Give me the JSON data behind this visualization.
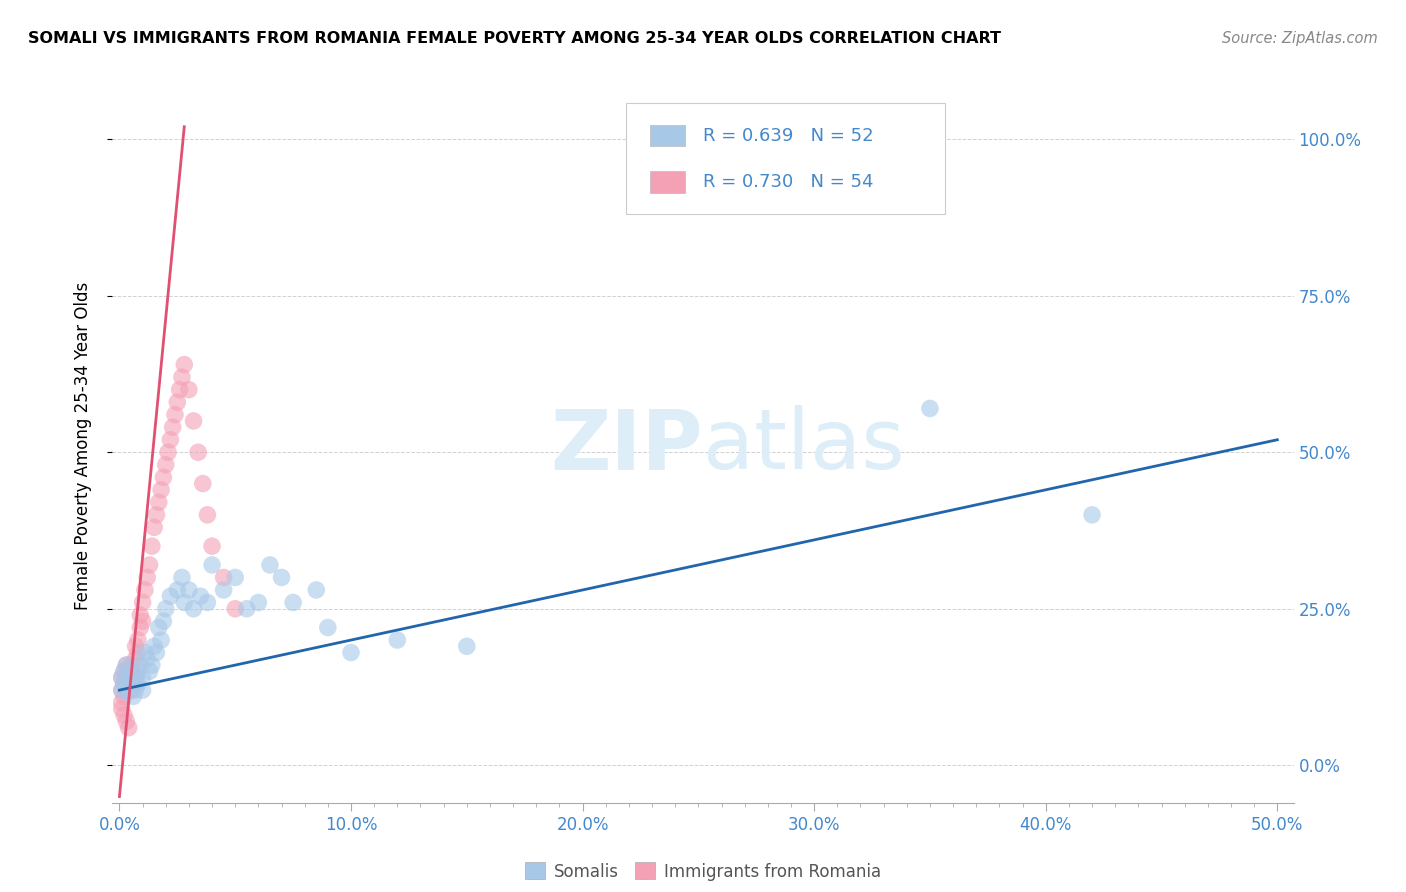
{
  "title": "SOMALI VS IMMIGRANTS FROM ROMANIA FEMALE POVERTY AMONG 25-34 YEAR OLDS CORRELATION CHART",
  "source": "Source: ZipAtlas.com",
  "ylabel_label": "Female Poverty Among 25-34 Year Olds",
  "legend_label1": "Somalis",
  "legend_label2": "Immigrants from Romania",
  "R1": 0.639,
  "N1": 52,
  "R2": 0.73,
  "N2": 54,
  "color_blue": "#a8c8e8",
  "color_pink": "#f4a0b5",
  "line_blue": "#2166ac",
  "line_pink": "#e05070",
  "watermark_color": "#ddeef8",
  "blue_line_x0": 0.0,
  "blue_line_y0": 0.12,
  "blue_line_x1": 0.5,
  "blue_line_y1": 0.52,
  "pink_line_x0": 0.0,
  "pink_line_y0": -0.05,
  "pink_line_x1": 0.028,
  "pink_line_y1": 1.02,
  "xlim_min": -0.003,
  "xlim_max": 0.507,
  "ylim_min": -0.06,
  "ylim_max": 1.08,
  "somali_x": [
    0.001,
    0.001,
    0.002,
    0.002,
    0.003,
    0.003,
    0.004,
    0.004,
    0.005,
    0.005,
    0.006,
    0.006,
    0.007,
    0.007,
    0.008,
    0.008,
    0.009,
    0.01,
    0.01,
    0.011,
    0.012,
    0.013,
    0.014,
    0.015,
    0.016,
    0.017,
    0.018,
    0.019,
    0.02,
    0.022,
    0.025,
    0.027,
    0.028,
    0.03,
    0.032,
    0.035,
    0.038,
    0.04,
    0.045,
    0.05,
    0.055,
    0.06,
    0.065,
    0.07,
    0.075,
    0.085,
    0.09,
    0.1,
    0.12,
    0.15,
    0.35,
    0.42
  ],
  "somali_y": [
    0.12,
    0.14,
    0.13,
    0.15,
    0.12,
    0.16,
    0.14,
    0.13,
    0.15,
    0.12,
    0.13,
    0.11,
    0.14,
    0.12,
    0.15,
    0.13,
    0.16,
    0.14,
    0.12,
    0.18,
    0.17,
    0.15,
    0.16,
    0.19,
    0.18,
    0.22,
    0.2,
    0.23,
    0.25,
    0.27,
    0.28,
    0.3,
    0.26,
    0.28,
    0.25,
    0.27,
    0.26,
    0.32,
    0.28,
    0.3,
    0.25,
    0.26,
    0.32,
    0.3,
    0.26,
    0.28,
    0.22,
    0.18,
    0.2,
    0.19,
    0.57,
    0.4
  ],
  "romania_x": [
    0.001,
    0.001,
    0.001,
    0.002,
    0.002,
    0.002,
    0.003,
    0.003,
    0.003,
    0.004,
    0.004,
    0.005,
    0.005,
    0.005,
    0.006,
    0.006,
    0.007,
    0.007,
    0.008,
    0.008,
    0.009,
    0.009,
    0.01,
    0.01,
    0.011,
    0.012,
    0.013,
    0.014,
    0.015,
    0.016,
    0.017,
    0.018,
    0.019,
    0.02,
    0.021,
    0.022,
    0.023,
    0.024,
    0.025,
    0.026,
    0.027,
    0.028,
    0.03,
    0.032,
    0.034,
    0.036,
    0.038,
    0.04,
    0.045,
    0.05,
    0.001,
    0.002,
    0.003,
    0.004
  ],
  "romania_y": [
    0.12,
    0.14,
    0.1,
    0.13,
    0.15,
    0.11,
    0.14,
    0.12,
    0.16,
    0.13,
    0.15,
    0.14,
    0.12,
    0.16,
    0.15,
    0.13,
    0.17,
    0.19,
    0.18,
    0.2,
    0.22,
    0.24,
    0.23,
    0.26,
    0.28,
    0.3,
    0.32,
    0.35,
    0.38,
    0.4,
    0.42,
    0.44,
    0.46,
    0.48,
    0.5,
    0.52,
    0.54,
    0.56,
    0.58,
    0.6,
    0.62,
    0.64,
    0.6,
    0.55,
    0.5,
    0.45,
    0.4,
    0.35,
    0.3,
    0.25,
    0.09,
    0.08,
    0.07,
    0.06
  ]
}
